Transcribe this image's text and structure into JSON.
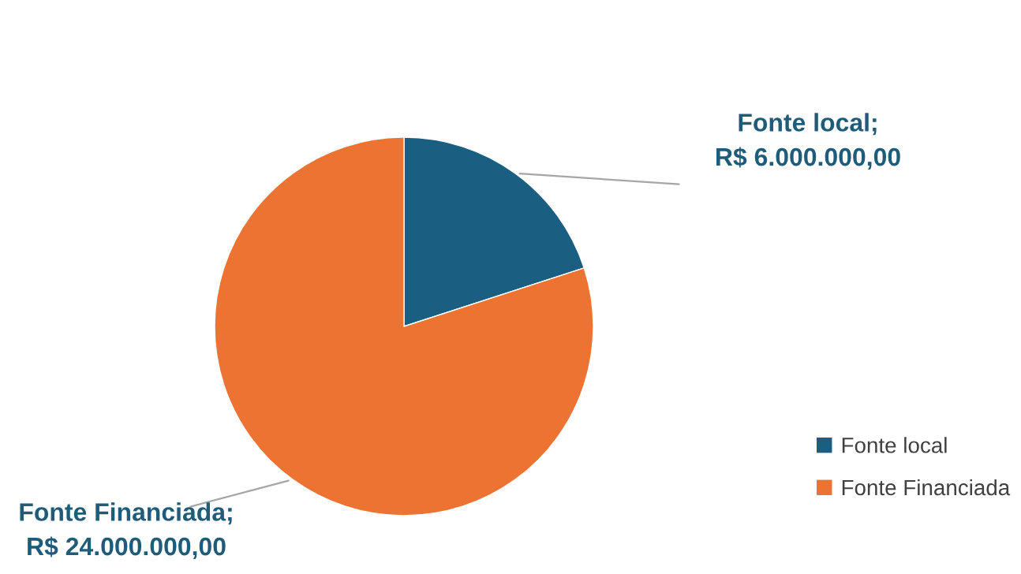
{
  "chart_data": {
    "type": "pie",
    "categories": [
      "Fonte local",
      "Fonte Financiada"
    ],
    "values": [
      6000000,
      24000000
    ],
    "colors": [
      "#1a5f82",
      "#ec7331"
    ],
    "value_labels": [
      "Fonte local;\nR$ 6.000.000,00",
      "Fonte Financiada;\nR$ 24.000.000,00"
    ],
    "legend": "right"
  }
}
